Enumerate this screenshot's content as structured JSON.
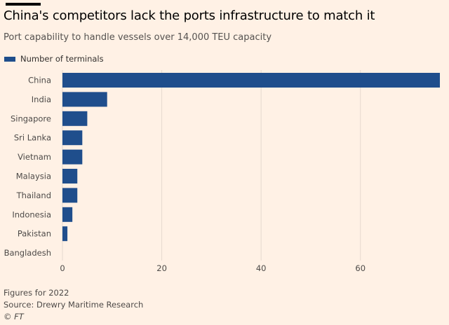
{
  "header": {
    "title": "China's competitors lack the ports infrastructure to match it",
    "subtitle": "Port capability to handle vessels over 14,000 TEU capacity"
  },
  "colors": {
    "bar": "#1f4e8c",
    "background": "#fff1e5",
    "grid": "#e6d9ce"
  },
  "chart_data": {
    "type": "bar",
    "orientation": "horizontal",
    "title": "China's competitors lack the ports infrastructure to match it",
    "subtitle": "Port capability to handle vessels over 14,000 TEU capacity",
    "legend": [
      "Number of terminals"
    ],
    "legend_position": "top-left",
    "categories": [
      "China",
      "India",
      "Singapore",
      "Sri Lanka",
      "Vietnam",
      "Malaysia",
      "Thailand",
      "Indonesia",
      "Pakistan",
      "Bangladesh"
    ],
    "series": [
      {
        "name": "Number of terminals",
        "values": [
          76,
          9,
          5,
          4,
          4,
          3,
          3,
          2,
          1,
          0
        ]
      }
    ],
    "xlim": [
      0,
      76
    ],
    "xticks": [
      0,
      20,
      40,
      60
    ],
    "xlabel": "",
    "ylabel": "",
    "grid": true
  },
  "footer": {
    "note": "Figures for 2022",
    "source": "Source: Drewry Maritime Research",
    "credit": "© FT"
  }
}
